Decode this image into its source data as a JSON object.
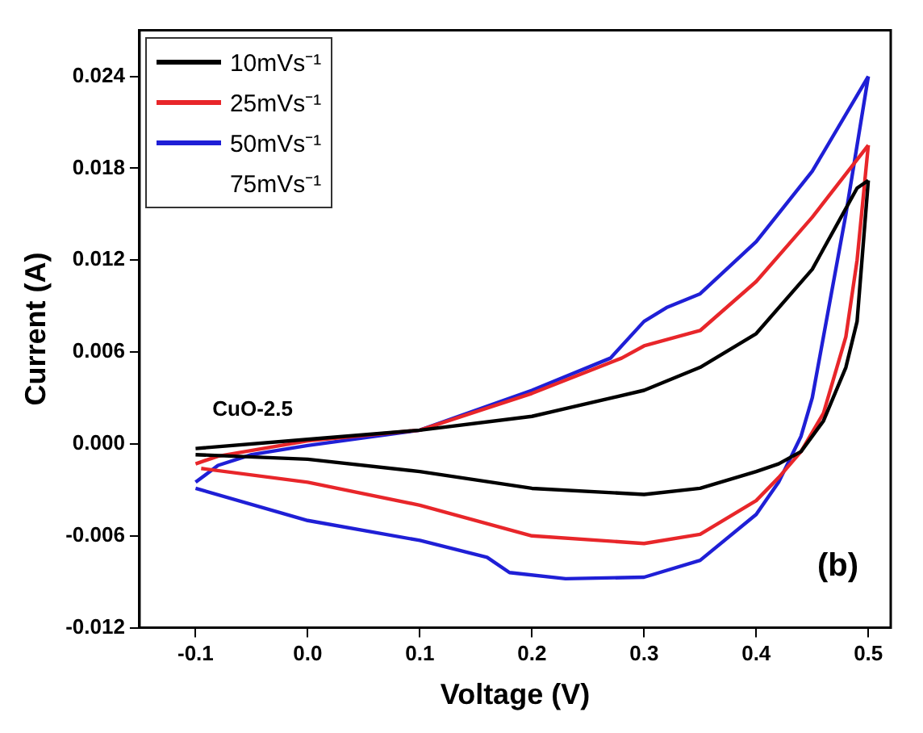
{
  "chart_data": {
    "type": "line",
    "xlabel": "Voltage (V)",
    "ylabel": "Current (A)",
    "xlim": [
      -0.15,
      0.52
    ],
    "ylim": [
      -0.012,
      0.027
    ],
    "xticks": [
      -0.1,
      {
        "value": 0,
        "label": "0.0"
      },
      0.1,
      0.2,
      0.3,
      0.4,
      0.5
    ],
    "yticks": [
      -0.012,
      -0.006,
      {
        "value": 0,
        "label": "0.000"
      },
      0.006,
      0.012,
      0.018,
      0.024
    ],
    "grid": false,
    "legend": "top left",
    "marker": "none",
    "line_style": "solid",
    "annotations": [
      "CuO-2.5",
      "(b)"
    ],
    "series": [
      {
        "name": "10mVs⁻¹",
        "color": "#000000",
        "x": [
          -0.1,
          0,
          0.1,
          0.2,
          0.3,
          0.35,
          0.4,
          0.45,
          0.49,
          0.5
        ],
        "values": [
          -0.0003,
          0.0003,
          0.0009,
          0.0018,
          0.0035,
          0.005,
          0.0072,
          0.0114,
          0.0167,
          0.0172
        ]
      },
      {
        "color": "#000000",
        "x": [
          -0.1,
          0,
          0.1,
          0.2,
          0.3,
          0.35,
          0.4,
          0.42,
          0.44,
          0.46,
          0.48,
          0.49,
          0.5
        ],
        "values": [
          -0.0007,
          -0.001,
          -0.0018,
          -0.0029,
          -0.0033,
          -0.0029,
          -0.0018,
          -0.0013,
          -0.0005,
          0.0015,
          0.005,
          0.008,
          0.0172
        ]
      },
      {
        "name": "25mVs⁻¹",
        "color": "#e8262a",
        "x": [
          -0.1,
          -0.08,
          0,
          0.1,
          0.2,
          0.28,
          0.3,
          0.35,
          0.4,
          0.45,
          0.5
        ],
        "values": [
          -0.0013,
          -0.0008,
          0.0002,
          0.0009,
          0.0033,
          0.0056,
          0.0064,
          0.0074,
          0.0106,
          0.0148,
          0.0195
        ]
      },
      {
        "color": "#e8262a",
        "x": [
          -0.095,
          0,
          0.1,
          0.15,
          0.2,
          0.3,
          0.35,
          0.4,
          0.42,
          0.44,
          0.46,
          0.48,
          0.49,
          0.5
        ],
        "values": [
          -0.0016,
          -0.0025,
          -0.004,
          -0.005,
          -0.006,
          -0.0065,
          -0.0059,
          -0.0037,
          -0.0022,
          -0.0005,
          0.002,
          0.007,
          0.012,
          0.0195
        ]
      },
      {
        "name": "50mVs⁻¹",
        "color": "#1f1fd6",
        "x": [
          -0.1,
          -0.08,
          -0.05,
          0,
          0.05,
          0.1,
          0.2,
          0.27,
          0.3,
          0.32,
          0.35,
          0.4,
          0.45,
          0.5
        ],
        "values": [
          -0.0025,
          -0.0014,
          -0.0007,
          -0.0001,
          0.0004,
          0.0009,
          0.0035,
          0.0056,
          0.008,
          0.0089,
          0.0098,
          0.0132,
          0.0178,
          0.024
        ]
      },
      {
        "color": "#1f1fd6",
        "x": [
          -0.1,
          0,
          0.1,
          0.16,
          0.18,
          0.23,
          0.3,
          0.35,
          0.4,
          0.42,
          0.44,
          0.45,
          0.46,
          0.48,
          0.5
        ],
        "values": [
          -0.0029,
          -0.005,
          -0.0063,
          -0.0074,
          -0.0084,
          -0.0088,
          -0.0087,
          -0.0076,
          -0.0046,
          -0.0025,
          0.0005,
          0.003,
          0.007,
          0.015,
          0.024
        ]
      },
      {
        "name": "75mVs⁻¹"
      }
    ]
  }
}
